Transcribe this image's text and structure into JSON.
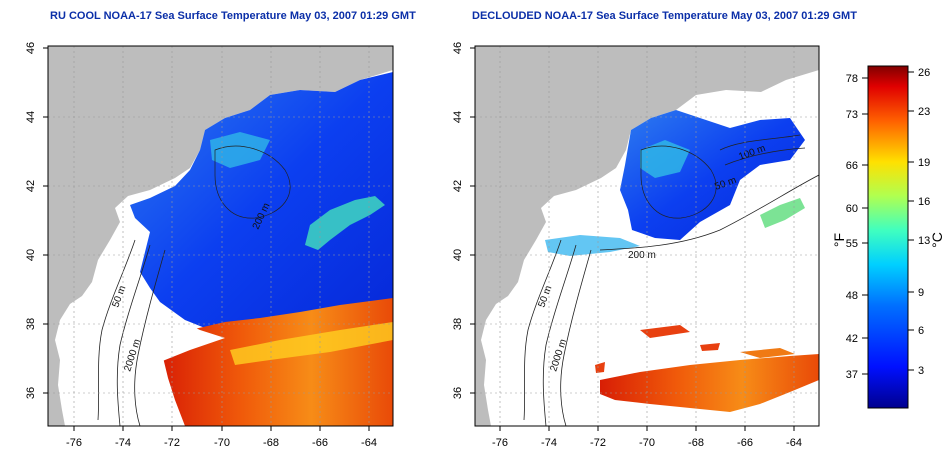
{
  "titles": {
    "left": "RU COOL NOAA-17 Sea Surface Temperature May 03, 2007 01:29 GMT",
    "right": "DECLOUDED NOAA-17 Sea Surface Temperature May 03, 2007 01:29 GMT"
  },
  "axes": {
    "x_ticks": [
      "-76",
      "-74",
      "-72",
      "-70",
      "-68",
      "-66",
      "-64"
    ],
    "y_ticks": [
      "46",
      "44",
      "42",
      "40",
      "38",
      "36"
    ],
    "lon_range": [
      -77.1,
      -63.0
    ],
    "lat_range": [
      35.0,
      46.0
    ]
  },
  "contour_labels": {
    "left": [
      "50 m",
      "2000 m",
      "200 m"
    ],
    "right": [
      "50 m",
      "2000 m",
      "200 m",
      "100 m",
      "50 m"
    ]
  },
  "colorbar": {
    "fahrenheit_ticks": [
      "78",
      "73",
      "66",
      "60",
      "55",
      "48",
      "42",
      "37"
    ],
    "celsius_ticks": [
      "26",
      "23",
      "19",
      "16",
      "13",
      "9",
      "6",
      "3"
    ],
    "fahrenheit_unit": "°F",
    "celsius_unit": "°C",
    "range_celsius": [
      0,
      27
    ]
  },
  "colors": {
    "land": "#bdbdbd",
    "ocean_no_data": "#ffffff",
    "title": "#0b2fa8",
    "grid": "#9a9a9a"
  }
}
